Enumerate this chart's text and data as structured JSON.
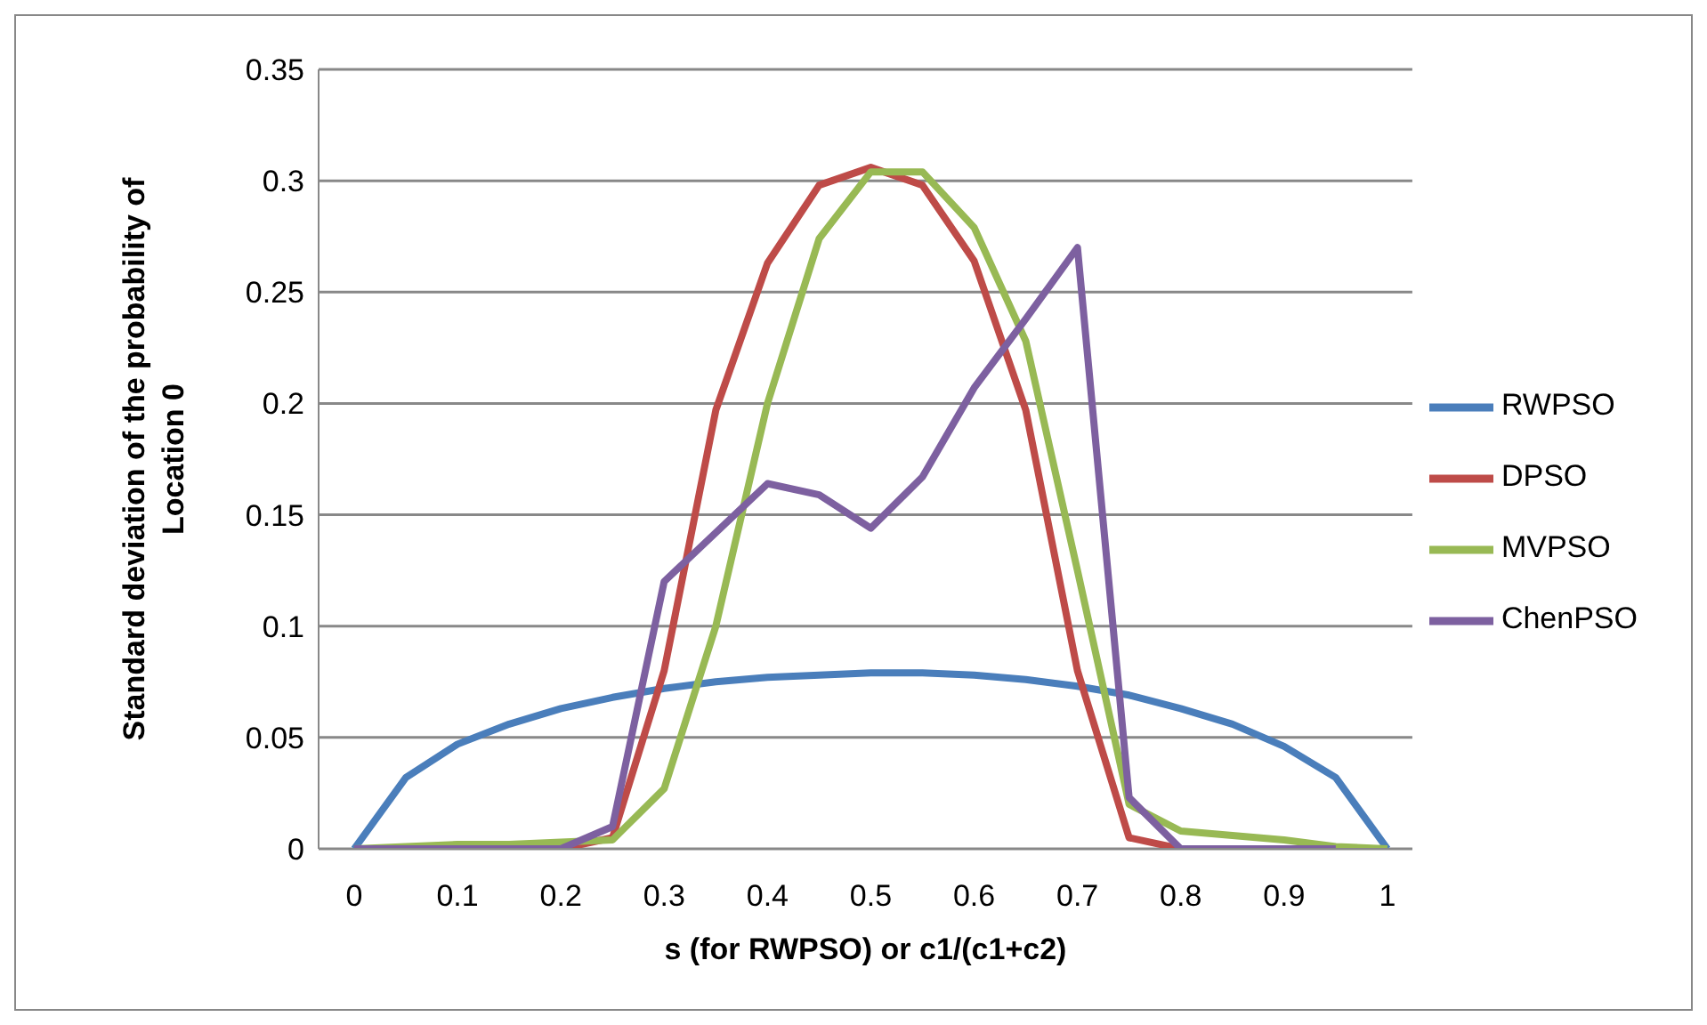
{
  "chart_data": {
    "type": "line",
    "xlabel": "s (for RWPSO) or c1/(c1+c2)",
    "ylabel": "Standard deviation of the probability of Location 0",
    "categories": [
      "0",
      null,
      "0.1",
      null,
      "0.2",
      null,
      "0.3",
      null,
      "0.4",
      null,
      "0.5",
      null,
      "0.6",
      null,
      "0.7",
      null,
      "0.8",
      null,
      "0.9",
      null,
      "1"
    ],
    "series": [
      {
        "name": "RWPSO",
        "color": "#4a7ebb",
        "values": [
          0,
          0.032,
          0.047,
          0.056,
          0.063,
          0.068,
          0.072,
          0.075,
          0.077,
          0.078,
          0.079,
          0.079,
          0.078,
          0.076,
          0.073,
          0.069,
          0.063,
          0.056,
          0.046,
          0.032,
          0
        ]
      },
      {
        "name": "DPSO",
        "color": "#be4b48",
        "values": [
          null,
          null,
          null,
          null,
          0,
          0.005,
          0.08,
          0.197,
          0.263,
          0.298,
          0.306,
          0.298,
          0.264,
          0.197,
          0.08,
          0.005,
          0,
          null,
          null,
          null,
          null
        ]
      },
      {
        "name": "MVPSO",
        "color": "#98b954",
        "values": [
          0,
          0.001,
          0.002,
          0.002,
          0.003,
          0.004,
          0.027,
          0.1,
          0.2,
          0.274,
          0.304,
          0.304,
          0.279,
          0.228,
          0.125,
          0.02,
          0.008,
          0.006,
          0.004,
          0.001,
          0
        ]
      },
      {
        "name": "ChenPSO",
        "color": "#7d60a0",
        "values": [
          0,
          0,
          0,
          0,
          0,
          0.01,
          0.12,
          0.142,
          0.164,
          0.159,
          0.144,
          0.167,
          0.207,
          0.238,
          0.27,
          0.023,
          0,
          0,
          0,
          0,
          null
        ]
      }
    ],
    "ylim": [
      0,
      0.35
    ],
    "yticks": [
      0,
      0.05,
      0.1,
      0.15,
      0.2,
      0.25,
      0.3,
      0.35
    ],
    "grid": "y",
    "legend": "right",
    "marker": "none",
    "line_style": "solid"
  }
}
